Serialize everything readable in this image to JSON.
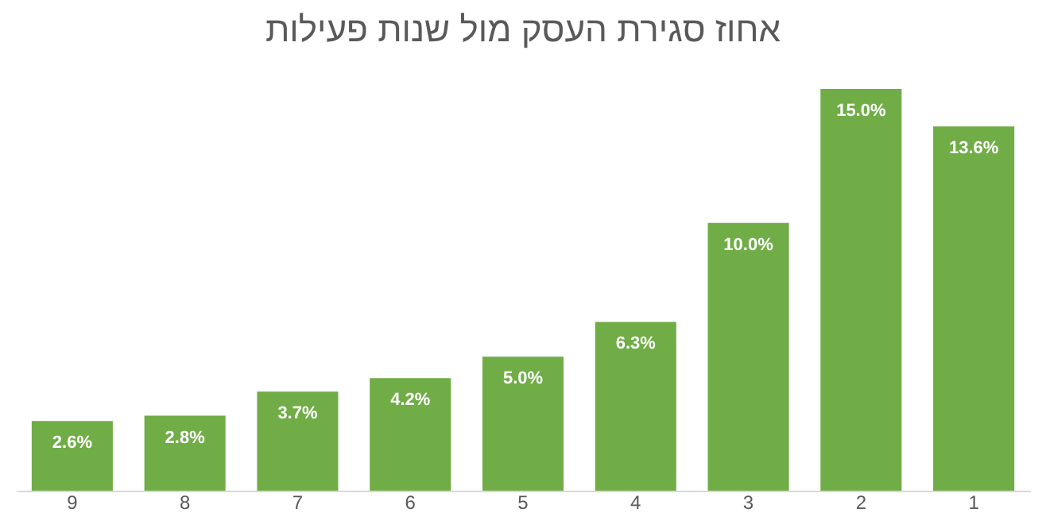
{
  "chart_data": {
    "type": "bar",
    "title": "אחוז סגירת העסק מול שנות פעילות",
    "categories": [
      "9",
      "8",
      "7",
      "6",
      "5",
      "4",
      "3",
      "2",
      "1"
    ],
    "values": [
      2.6,
      2.8,
      3.7,
      4.2,
      5.0,
      6.3,
      10.0,
      15.0,
      13.6
    ],
    "color": "#70ad47",
    "value_labels": [
      "2.6%",
      "2.8%",
      "3.7%",
      "4.2%",
      "5.0%",
      "6.3%",
      "10.0%",
      "15.0%",
      "13.6%"
    ],
    "tick_labels": "x",
    "grid": false
  }
}
